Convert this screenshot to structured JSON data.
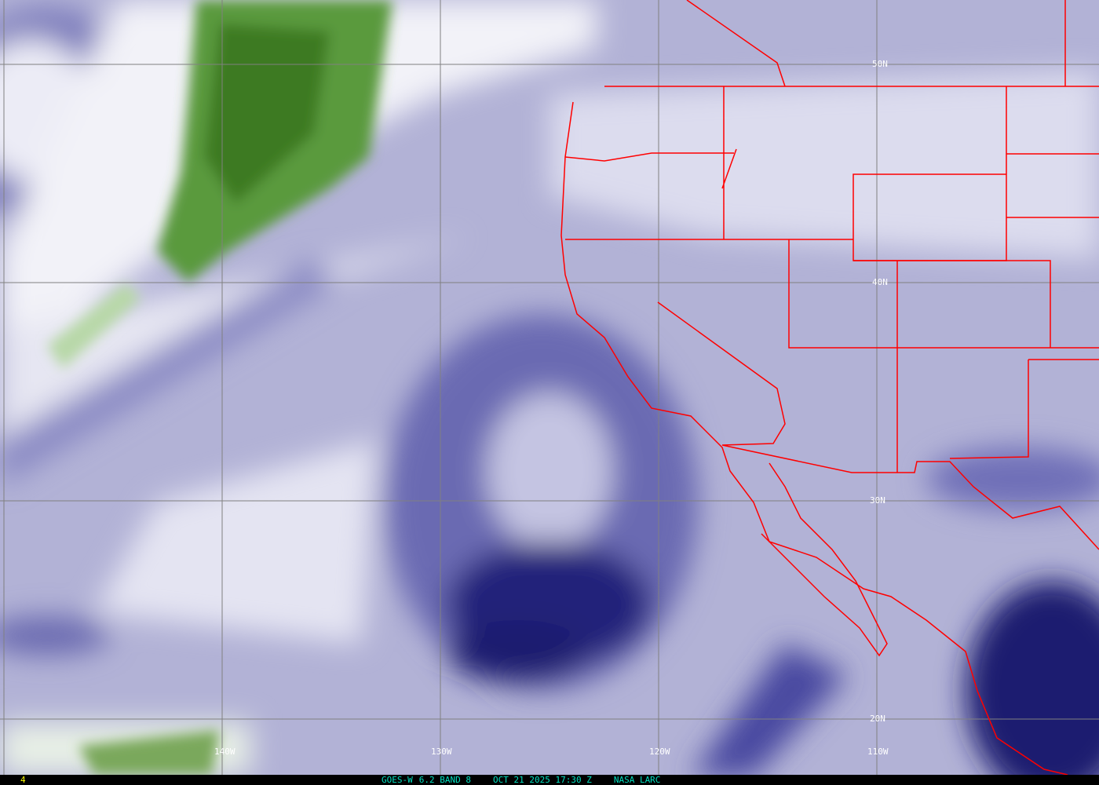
{
  "image": {
    "satellite": "GOES-W",
    "product": "6.2 BAND 8",
    "datetime": "OCT 21 2025 17:30 Z",
    "credit": "NASA LARC",
    "frame_number": "4"
  },
  "grid": {
    "longitude_labels": [
      "140W",
      "130W",
      "120W",
      "110W"
    ],
    "latitude_labels": [
      "50N",
      "40N",
      "30N",
      "20N"
    ]
  },
  "colors": {
    "border": "#ff0000",
    "grid": "#808080",
    "moist": "#f0f0f8",
    "dry": "#1a1a70",
    "very_moist": "#3c7a20",
    "caption": "#00e0c0",
    "frame_number": "#ffff00"
  }
}
